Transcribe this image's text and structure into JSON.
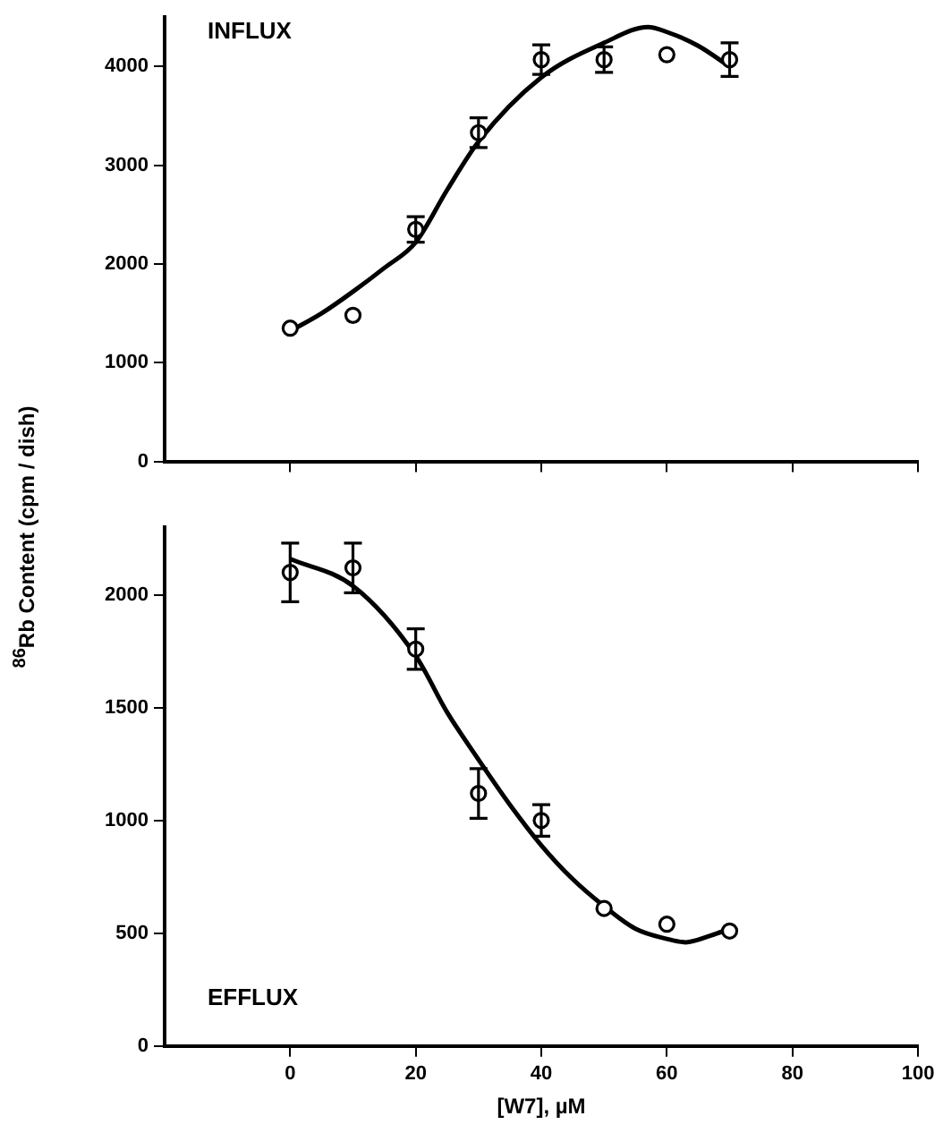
{
  "chart_data": [
    {
      "type": "scatter",
      "ylabel": "$^{86}$Rb Content (cpm / dish)",
      "annotations": [
        "INFLUX"
      ],
      "xlim": [
        -20,
        100
      ],
      "xticks": [
        0,
        20,
        40,
        60,
        80,
        100
      ],
      "ylim": [
        0,
        4500
      ],
      "yticks": [
        0,
        1000,
        2000,
        3000,
        4000
      ],
      "tick_labels": "y",
      "grid": false,
      "legend": false,
      "marker": "circle",
      "series": [
        {
          "type": "scatter",
          "color": "#000000",
          "x": [
            0,
            10,
            20,
            30,
            40,
            50,
            60,
            70
          ],
          "values": [
            1350,
            1480,
            2350,
            3330,
            4070,
            4070,
            4120,
            4070
          ],
          "errors": [
            null,
            null,
            130,
            150,
            150,
            130,
            null,
            170
          ]
        },
        {
          "type": "line",
          "color": "#000000",
          "marker": "none",
          "x": [
            0,
            5,
            10,
            15,
            20,
            25,
            30,
            40,
            50,
            57,
            60,
            65,
            70
          ],
          "values": [
            1320,
            1500,
            1720,
            1960,
            2220,
            2750,
            3240,
            3890,
            4240,
            4400,
            4350,
            4210,
            4000
          ]
        }
      ]
    },
    {
      "type": "scatter",
      "xlabel": "[W7], µM",
      "annotations": [
        "EFFLUX"
      ],
      "xlim": [
        -20,
        100
      ],
      "xticks": [
        0,
        20,
        40,
        60,
        80,
        100
      ],
      "ylim": [
        0,
        2300
      ],
      "yticks": [
        0,
        500,
        1000,
        1500,
        2000
      ],
      "grid": false,
      "legend": false,
      "marker": "circle",
      "series": [
        {
          "type": "scatter",
          "color": "#000000",
          "x": [
            0,
            10,
            20,
            30,
            40,
            50,
            60,
            70
          ],
          "values": [
            2100,
            2120,
            1760,
            1120,
            1000,
            610,
            540,
            510
          ],
          "errors": [
            130,
            110,
            90,
            110,
            70,
            null,
            null,
            null
          ]
        },
        {
          "type": "line",
          "color": "#000000",
          "marker": "none",
          "x": [
            0,
            10,
            20,
            25,
            30,
            35,
            40,
            45,
            50,
            55,
            60,
            63,
            67,
            70
          ],
          "values": [
            2160,
            2040,
            1730,
            1480,
            1270,
            1070,
            890,
            740,
            620,
            520,
            475,
            460,
            490,
            520
          ]
        }
      ]
    }
  ]
}
